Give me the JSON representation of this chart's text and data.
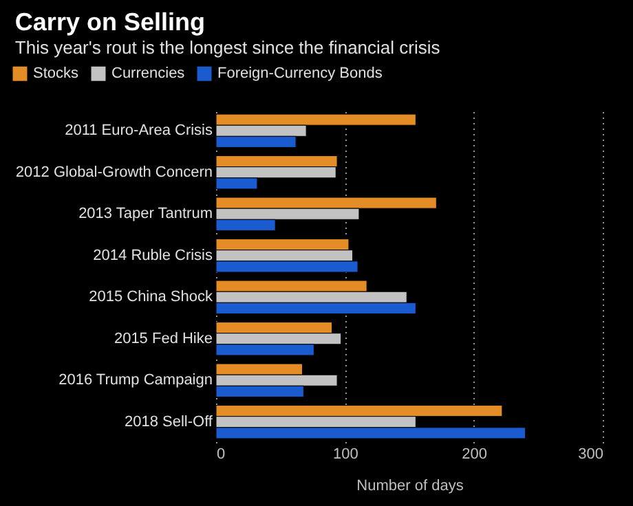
{
  "chart_data": {
    "type": "bar",
    "orientation": "horizontal",
    "title": "Carry on Selling",
    "subtitle": "This year's rout is the longest since the financial crisis",
    "xlabel": "Number of days",
    "categories": [
      "2011 Euro-Area Crisis",
      "2012 Global-Growth Concern",
      "2013 Taper Tantrum",
      "2014 Ruble Crisis",
      "2015 China Shock",
      "2015 Fed Hike",
      "2016 Trump Campaign",
      "2018 Sell-Off"
    ],
    "series": [
      {
        "name": "Stocks",
        "color": "#e48c25",
        "values": [
          155,
          94,
          171,
          103,
          117,
          90,
          67,
          222
        ]
      },
      {
        "name": "Currencies",
        "color": "#c2c2c2",
        "values": [
          70,
          93,
          111,
          106,
          148,
          97,
          94,
          155
        ]
      },
      {
        "name": "Foreign-Currency Bonds",
        "color": "#1a5cd0",
        "values": [
          62,
          32,
          46,
          110,
          155,
          76,
          68,
          240
        ]
      }
    ],
    "xlim": [
      0,
      300
    ],
    "xticks": [
      0,
      100,
      200,
      300
    ],
    "grid": "x",
    "legend": "top left"
  }
}
